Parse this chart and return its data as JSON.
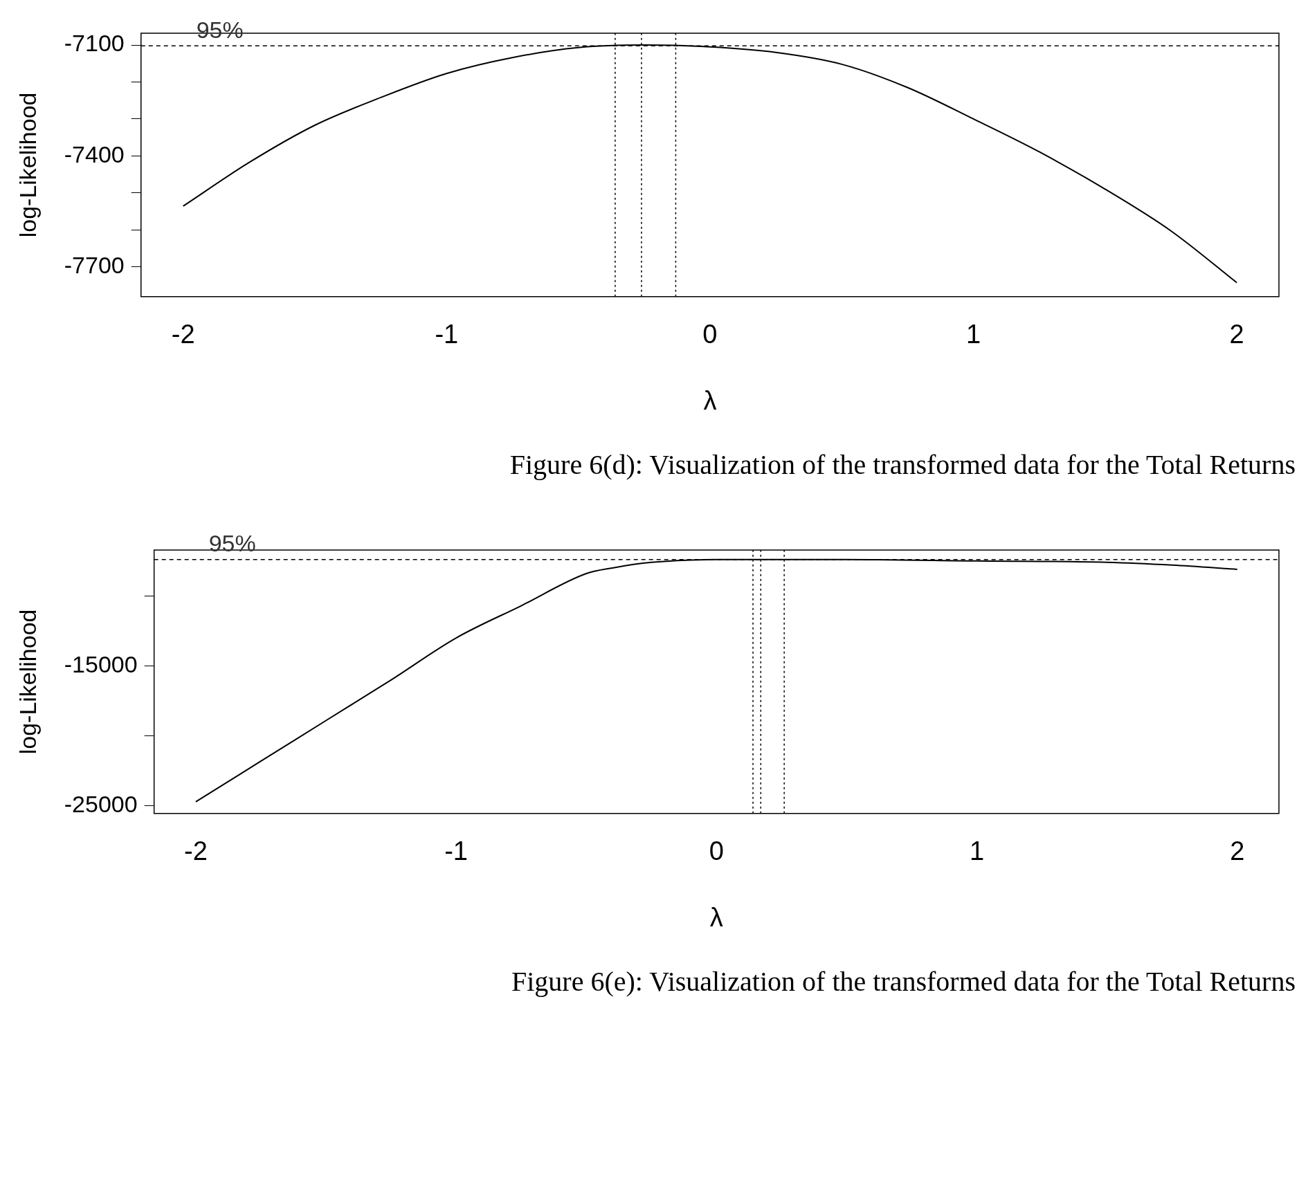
{
  "chart_data": [
    {
      "type": "line",
      "xlabel": "λ",
      "ylabel": "log-Likelihood",
      "marker": "none",
      "grid": false,
      "legend": false,
      "xlim": [
        -2.16,
        2.16
      ],
      "xticks": [
        -2,
        -1,
        0,
        1,
        2
      ],
      "ylim": [
        -7781,
        -7068
      ],
      "yticks": [
        {
          "value": -7700,
          "label": "-7700"
        },
        {
          "value": -7600,
          "label": null
        },
        {
          "value": -7500,
          "label": null
        },
        {
          "value": -7400,
          "label": "-7400"
        },
        {
          "value": -7300,
          "label": null
        },
        {
          "value": -7200,
          "label": null
        },
        {
          "value": -7100,
          "label": "-7100"
        }
      ],
      "series": [
        {
          "color": "#000000",
          "x": [
            -2,
            -1.75,
            -1.5,
            -1.25,
            -1,
            -0.75,
            -0.5,
            -0.25,
            0,
            0.25,
            0.5,
            0.75,
            1,
            1.25,
            1.5,
            1.75,
            2
          ],
          "values": [
            -7536,
            -7418,
            -7317,
            -7242,
            -7177,
            -7134,
            -7107,
            -7100,
            -7105,
            -7120,
            -7152,
            -7215,
            -7300,
            -7389,
            -7490,
            -7603,
            -7743
          ]
        }
      ],
      "ref_lines": [
        {
          "axis": "y",
          "value": -7102,
          "line_style": "dashed"
        },
        {
          "axis": "x",
          "value": -0.36,
          "label": null,
          "line_style": "dotted"
        },
        {
          "axis": "x",
          "value": -0.26,
          "label": null,
          "line_style": "dotted"
        },
        {
          "axis": "x",
          "value": -0.13,
          "label": null,
          "line_style": "dotted"
        }
      ],
      "annotations": [
        {
          "text": "95%",
          "x": -1.95,
          "y": -7102
        },
        "Figure 6(d): Visualization of the transformed data for the Total Returns"
      ]
    },
    {
      "type": "line",
      "xlabel": "λ",
      "ylabel": "log-Likelihood",
      "marker": "none",
      "grid": false,
      "legend": false,
      "xlim": [
        -2.16,
        2.16
      ],
      "xticks": [
        -2,
        -1,
        0,
        1,
        2
      ],
      "ylim": [
        -25538,
        -6720
      ],
      "yticks": [
        {
          "value": -25000,
          "label": "-25000"
        },
        {
          "value": -20000,
          "label": null
        },
        {
          "value": -15000,
          "label": "-15000"
        },
        {
          "value": -10000,
          "label": null
        }
      ],
      "series": [
        {
          "color": "#000000",
          "x": [
            -2,
            -1.75,
            -1.5,
            -1.25,
            -1,
            -0.75,
            -0.5,
            -0.4,
            -0.25,
            0,
            0.5,
            1,
            1.5,
            1.75,
            2
          ],
          "values": [
            -24700,
            -21800,
            -18900,
            -16000,
            -13000,
            -10700,
            -8400,
            -8000,
            -7600,
            -7400,
            -7400,
            -7500,
            -7600,
            -7800,
            -8100
          ]
        }
      ],
      "ref_lines": [
        {
          "axis": "y",
          "value": -7400,
          "line_style": "dashed"
        },
        {
          "axis": "x",
          "value": 0.14,
          "label": null,
          "line_style": "dotted"
        },
        {
          "axis": "x",
          "value": 0.17,
          "label": null,
          "line_style": "dotted"
        },
        {
          "axis": "x",
          "value": 0.26,
          "label": null,
          "line_style": "dotted"
        }
      ],
      "annotations": [
        {
          "text": "95%",
          "x": -1.95,
          "y": -7400
        },
        "Figure 6(e): Visualization of the transformed data for the Total Returns"
      ]
    }
  ]
}
